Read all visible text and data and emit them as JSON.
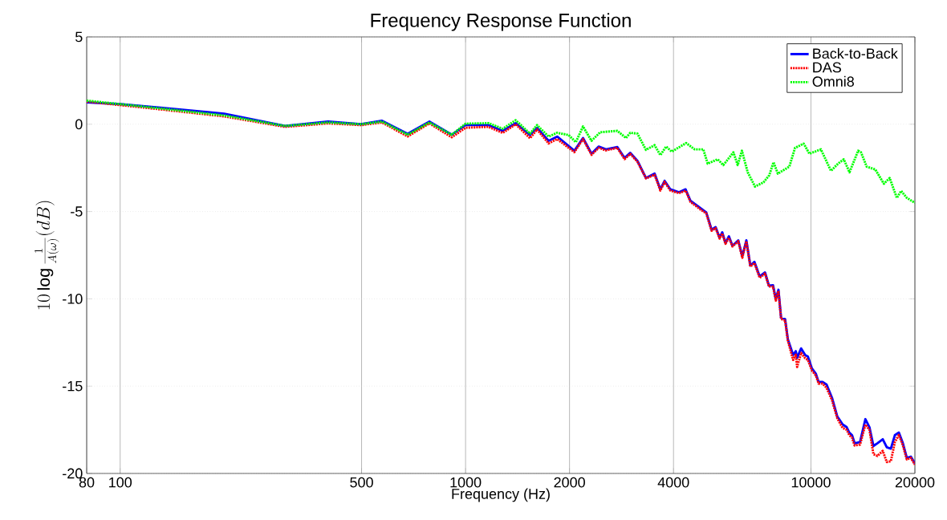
{
  "chart_data": {
    "type": "line",
    "title": "Frequency Response Function",
    "xlabel": "Frequency (Hz)",
    "ylabel": "10\\log\\frac{1}{A(\\omega)}(dB)",
    "log": "x",
    "grid": true,
    "legend": "top right",
    "xlim": [
      80,
      20000
    ],
    "xticks": [
      80,
      100,
      500,
      1000,
      2000,
      4000,
      10000,
      20000
    ],
    "ylim": [
      -20,
      5
    ],
    "yticks": [
      -20,
      -15,
      -10,
      -5,
      0,
      5
    ],
    "series": [
      {
        "name": "Back-to-Back",
        "color": "#0000ff",
        "line_style": "solid",
        "x": [
          80,
          100,
          131,
          200,
          300,
          400,
          498,
          573,
          680,
          786,
          912,
          1000,
          1165,
          1281,
          1397,
          1537,
          1611,
          1740,
          1842,
          2066,
          2188,
          2316,
          2430,
          2550,
          2751,
          2886,
          2999,
          3146,
          3330,
          3527,
          3665,
          3770,
          3918,
          4150,
          4336,
          4480,
          4696,
          4798,
          4975,
          5157,
          5297,
          5440,
          5536,
          5656,
          5788,
          5926,
          6160,
          6328,
          6501,
          6677,
          6860,
          7106,
          7363,
          7561,
          7768,
          7911,
          8052,
          8195,
          8418,
          8573,
          8881,
          9041,
          9120,
          9367,
          9623,
          9797,
          10064,
          10337,
          10521,
          10807,
          11100,
          11506,
          11923,
          12358,
          12689,
          12912,
          13149,
          13385,
          13872,
          14376,
          14769,
          15169,
          15580,
          16142,
          16584,
          17035,
          17499,
          17971,
          18458,
          18954,
          19466,
          20000
        ],
        "values": [
          1.25,
          1.15,
          0.95,
          0.6,
          -0.1,
          0.15,
          0,
          0.2,
          -0.55,
          0.15,
          -0.6,
          -0.05,
          -0.05,
          -0.38,
          0.06,
          -0.62,
          -0.21,
          -0.95,
          -0.71,
          -1.52,
          -0.79,
          -1.69,
          -1.28,
          -1.44,
          -1.31,
          -1.93,
          -1.64,
          -2.1,
          -3.08,
          -2.83,
          -3.73,
          -3.24,
          -3.73,
          -3.9,
          -3.73,
          -4.39,
          -4.68,
          -4.82,
          -5.05,
          -6.04,
          -5.89,
          -6.5,
          -6.19,
          -6.8,
          -6.42,
          -6.96,
          -6.65,
          -7.57,
          -6.65,
          -8.1,
          -7.88,
          -8.72,
          -8.49,
          -9.25,
          -9.22,
          -10.01,
          -9.48,
          -11.09,
          -11.16,
          -12.31,
          -13.22,
          -13.0,
          -13.38,
          -12.84,
          -13.22,
          -13.3,
          -13.99,
          -14.3,
          -14.76,
          -14.76,
          -14.91,
          -15.67,
          -16.74,
          -17.2,
          -17.35,
          -17.66,
          -17.81,
          -18.27,
          -18.2,
          -16.89,
          -17.35,
          -18.43,
          -18.27,
          -18.04,
          -18.5,
          -18.58,
          -17.81,
          -17.66,
          -18.27,
          -19.11,
          -19.04,
          -19.42
        ]
      },
      {
        "name": "DAS",
        "color": "#ff0000",
        "line_style": "dotted",
        "x": [
          80,
          100,
          131,
          200,
          300,
          400,
          498,
          573,
          680,
          786,
          912,
          1000,
          1165,
          1281,
          1397,
          1537,
          1611,
          1740,
          1842,
          2066,
          2188,
          2316,
          2430,
          2550,
          2751,
          2886,
          2999,
          3146,
          3330,
          3527,
          3665,
          3770,
          3918,
          4150,
          4336,
          4480,
          4696,
          4798,
          4975,
          5157,
          5297,
          5440,
          5536,
          5656,
          5788,
          5926,
          6160,
          6328,
          6501,
          6677,
          6860,
          7106,
          7363,
          7561,
          7768,
          7911,
          8052,
          8195,
          8418,
          8573,
          8881,
          9041,
          9120,
          9367,
          9623,
          9797,
          10064,
          10337,
          10521,
          10807,
          11100,
          11506,
          11923,
          12358,
          12689,
          12912,
          13149,
          13385,
          13872,
          14376,
          14769,
          15169,
          15580,
          16142,
          16584,
          17035,
          17499,
          17971,
          18458,
          18954,
          19466,
          20000
        ],
        "values": [
          1.3,
          null,
          0.85,
          0.45,
          -0.15,
          0.05,
          -0.05,
          0.1,
          -0.7,
          0.05,
          -0.75,
          -0.2,
          -0.15,
          -0.5,
          0,
          -0.8,
          -0.3,
          -1.1,
          -0.85,
          -1.6,
          -0.85,
          -1.75,
          -1.35,
          -1.5,
          -1.35,
          -2.0,
          -1.7,
          -2.15,
          -3.1,
          -2.9,
          -3.8,
          -3.3,
          -3.8,
          -3.95,
          -3.8,
          -4.45,
          -4.75,
          -4.9,
          -5.1,
          -6.1,
          -5.95,
          -6.55,
          -6.25,
          -6.85,
          -6.5,
          -7.0,
          -6.7,
          -7.65,
          -6.7,
          -8.15,
          -7.95,
          -8.8,
          -8.55,
          -9.3,
          -9.3,
          -10.1,
          -9.55,
          -11.15,
          -11.25,
          -12.4,
          -13.5,
          -13.2,
          -13.9,
          -13.1,
          -13.4,
          -13.5,
          -14.1,
          -14.4,
          -14.85,
          -14.85,
          -15.1,
          -15.8,
          -16.85,
          -17.4,
          -17.5,
          -17.8,
          -17.95,
          -18.4,
          -18.35,
          -17.2,
          -17.5,
          -18.9,
          -19.0,
          -18.7,
          -19.35,
          -19.3,
          -18.2,
          -17.8,
          -18.4,
          -19.2,
          -19.1,
          -19.5
        ]
      },
      {
        "name": "Omni8",
        "color": "#00ff00",
        "line_style": "dotted",
        "x": [
          80,
          100,
          131,
          200,
          300,
          400,
          498,
          573,
          680,
          786,
          912,
          1000,
          1165,
          1281,
          1397,
          1537,
          1611,
          1740,
          1842,
          1989,
          2086,
          2188,
          2316,
          2454,
          2751,
          2914,
          2999,
          3146,
          3330,
          3527,
          3665,
          3808,
          3953,
          4352,
          4608,
          4880,
          5024,
          5368,
          5576,
          5964,
          6137,
          6312,
          6560,
          6888,
          7288,
          7576,
          7792,
          8022,
          8659,
          8992,
          9527,
          9898,
          10686,
          11427,
          11981,
          12445,
          12933,
          13699,
          13960,
          14503,
          15357,
          16266,
          16902,
          17728,
          18241,
          18954,
          20000
        ],
        "values": [
          1.35,
          1.15,
          0.9,
          0.5,
          -0.1,
          0.1,
          0,
          0.15,
          -0.6,
          0.1,
          -0.6,
          0.03,
          0.06,
          -0.26,
          0.23,
          -0.54,
          -0.05,
          -0.71,
          -0.49,
          -0.62,
          -1.03,
          -0.13,
          -0.95,
          -0.46,
          -0.38,
          -0.79,
          -0.49,
          -0.54,
          -1.47,
          -1.2,
          -1.77,
          -1.28,
          -1.57,
          -1.08,
          -1.44,
          -1.44,
          -2.26,
          -2.01,
          -2.34,
          -1.61,
          -2.34,
          -1.52,
          -2.75,
          -3.57,
          -3.33,
          -2.92,
          -2.18,
          -2.83,
          -2.43,
          -1.36,
          -1.11,
          -1.69,
          -1.44,
          -2.67,
          -2.26,
          -2.01,
          -2.75,
          -1.52,
          -1.61,
          -2.43,
          -2.59,
          -3.41,
          -3.08,
          -4.22,
          -3.82,
          -4.22,
          -4.5
        ]
      }
    ]
  }
}
